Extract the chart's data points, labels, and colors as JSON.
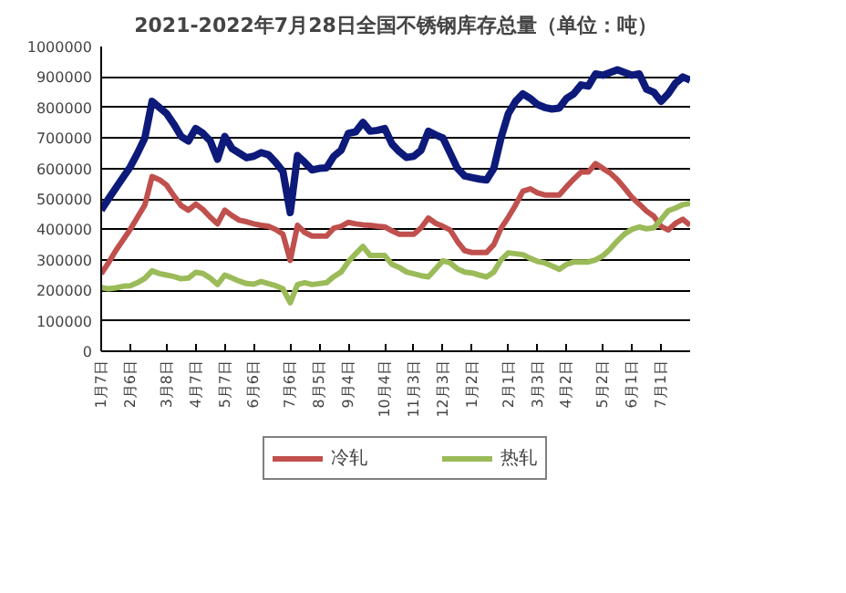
{
  "chart_data": {
    "type": "line",
    "title": "2021-2022年7月28日全国不锈钢库存总量（单位：吨）",
    "categories": [
      "1月7日",
      null,
      null,
      null,
      "2月6日",
      null,
      null,
      null,
      null,
      "3月8日",
      null,
      null,
      null,
      "4月7日",
      null,
      null,
      null,
      "5月7日",
      null,
      null,
      null,
      "6月6日",
      null,
      null,
      null,
      null,
      "7月6日",
      null,
      null,
      null,
      "8月5日",
      null,
      null,
      null,
      "9月4日",
      null,
      null,
      null,
      null,
      "10月4日",
      null,
      null,
      null,
      "11月3日",
      null,
      null,
      null,
      "12月3日",
      null,
      null,
      null,
      "1月2日",
      null,
      null,
      null,
      null,
      "2月1日",
      null,
      null,
      null,
      "3月3日",
      null,
      null,
      null,
      "4月2日",
      null,
      null,
      null,
      null,
      "5月2日",
      null,
      null,
      null,
      "6月1日",
      null,
      null,
      null,
      "7月1日",
      null,
      null,
      null,
      null
    ],
    "series": [
      {
        "color": "#0d1a7a",
        "values": [
          463000,
          500000,
          535000,
          570000,
          605000,
          650000,
          700000,
          820000,
          800000,
          780000,
          745000,
          705000,
          690000,
          731000,
          715000,
          690000,
          630000,
          705000,
          665000,
          650000,
          635000,
          640000,
          652000,
          645000,
          620000,
          590000,
          455000,
          642000,
          620000,
          595000,
          600000,
          602000,
          640000,
          660000,
          715000,
          720000,
          751000,
          722000,
          725000,
          731000,
          680000,
          655000,
          636000,
          640000,
          660000,
          722000,
          710000,
          700000,
          650000,
          600000,
          575000,
          570000,
          565000,
          562000,
          600000,
          701000,
          780000,
          820000,
          845000,
          830000,
          810000,
          800000,
          795000,
          798000,
          830000,
          845000,
          874000,
          870000,
          910000,
          906000,
          915000,
          924000,
          915000,
          906000,
          910000,
          860000,
          850000,
          820000,
          845000,
          880000,
          900000,
          890000
        ]
      },
      {
        "name": "冷轧",
        "color": "#c0504d",
        "values": [
          254000,
          290000,
          330000,
          365000,
          400000,
          440000,
          480000,
          573000,
          563000,
          545000,
          510000,
          478000,
          463000,
          483000,
          465000,
          440000,
          418000,
          463000,
          445000,
          430000,
          425000,
          418000,
          413000,
          410000,
          400000,
          384000,
          298000,
          413000,
          390000,
          378000,
          378000,
          378000,
          404000,
          410000,
          423000,
          418000,
          415000,
          413000,
          410000,
          408000,
          395000,
          384000,
          384000,
          384000,
          405000,
          437000,
          420000,
          410000,
          398000,
          360000,
          330000,
          324000,
          324000,
          324000,
          350000,
          404000,
          440000,
          480000,
          525000,
          533000,
          520000,
          513000,
          513000,
          513000,
          540000,
          565000,
          588000,
          588000,
          616000,
          600000,
          585000,
          563000,
          535000,
          505000,
          483000,
          460000,
          443000,
          410000,
          398000,
          420000,
          433000,
          413000
        ]
      },
      {
        "name": "热轧",
        "color": "#9bbb59",
        "values": [
          209000,
          205000,
          208000,
          213000,
          215000,
          225000,
          239000,
          264000,
          255000,
          250000,
          245000,
          238000,
          240000,
          259000,
          255000,
          240000,
          219000,
          250000,
          240000,
          230000,
          222000,
          220000,
          229000,
          222000,
          215000,
          205000,
          159000,
          219000,
          225000,
          219000,
          222000,
          225000,
          245000,
          260000,
          294000,
          320000,
          344000,
          314000,
          314000,
          314000,
          285000,
          275000,
          260000,
          254000,
          248000,
          244000,
          270000,
          297000,
          290000,
          270000,
          260000,
          257000,
          250000,
          244000,
          260000,
          300000,
          323000,
          320000,
          317000,
          305000,
          295000,
          290000,
          280000,
          269000,
          285000,
          293000,
          293000,
          293000,
          300000,
          313000,
          335000,
          362000,
          385000,
          400000,
          408000,
          402000,
          405000,
          432000,
          461000,
          470000,
          481000,
          485000
        ]
      }
    ],
    "ylim": [
      0,
      1000000
    ],
    "yticks": [
      0,
      100000,
      200000,
      300000,
      400000,
      500000,
      600000,
      700000,
      800000,
      900000,
      1000000
    ],
    "grid": "y",
    "legend": "bottom",
    "marker": "none",
    "line_style": "solid"
  }
}
